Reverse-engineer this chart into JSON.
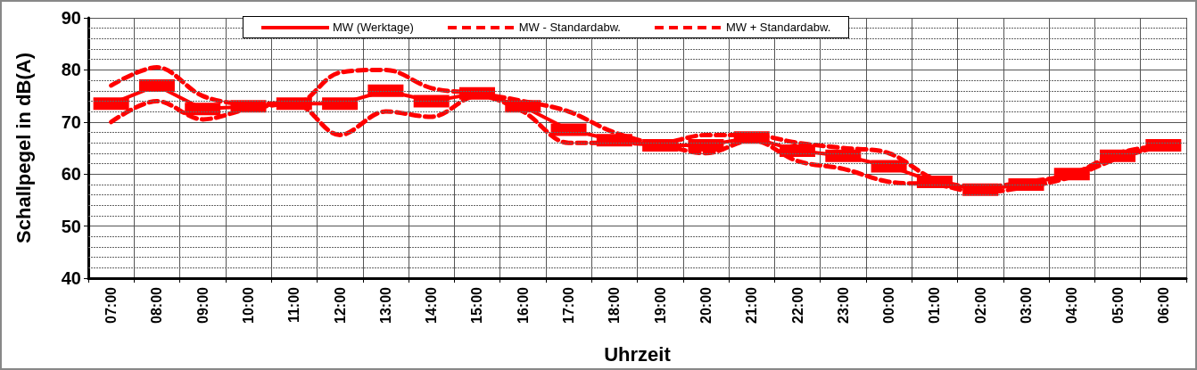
{
  "chart_data": {
    "type": "line",
    "xlabel": "Uhrzeit",
    "ylabel": "Schallpegel in dB(A)",
    "categories": [
      "07:00",
      "08:00",
      "09:00",
      "10:00",
      "11:00",
      "12:00",
      "13:00",
      "14:00",
      "15:00",
      "16:00",
      "17:00",
      "18:00",
      "19:00",
      "20:00",
      "21:00",
      "22:00",
      "23:00",
      "00:00",
      "01:00",
      "02:00",
      "03:00",
      "04:00",
      "05:00",
      "06:00"
    ],
    "series": [
      {
        "name": "MW (Werktage)",
        "color": "#ff0000",
        "marker": "square",
        "line_style": "solid",
        "values": [
          73.5,
          77,
          72.5,
          73,
          73.5,
          73.5,
          76,
          74,
          75.5,
          73,
          68.5,
          66.5,
          65.5,
          65.5,
          67,
          64.5,
          63.5,
          61.5,
          58.5,
          57,
          58,
          60,
          63.5,
          65.5
        ]
      },
      {
        "name": "MW - Standardabw.",
        "color": "#ff0000",
        "marker": "none",
        "line_style": "dashed",
        "values": [
          70,
          74,
          70.5,
          72.5,
          73.5,
          67.5,
          72,
          71,
          75,
          72,
          66,
          66,
          65.5,
          64,
          66.5,
          62.5,
          61,
          58.5,
          58,
          56.5,
          57.5,
          59.5,
          63,
          65.5
        ]
      },
      {
        "name": "MW + Standardabw.",
        "color": "#ff0000",
        "marker": "none",
        "line_style": "dashed",
        "values": [
          77,
          80.5,
          75,
          73.5,
          73.5,
          79.5,
          80,
          76.5,
          75.5,
          74,
          72,
          68,
          66,
          67.5,
          67.5,
          66,
          65,
          64,
          59,
          57.5,
          58.5,
          60,
          64,
          65.5
        ]
      }
    ],
    "ylim": [
      40,
      90
    ],
    "yticks": [
      40,
      {
        "value": 42,
        "label": null
      },
      {
        "value": 44,
        "label": null
      },
      {
        "value": 46,
        "label": null
      },
      {
        "value": 48,
        "label": null
      },
      50,
      {
        "value": 52,
        "label": null
      },
      {
        "value": 54,
        "label": null
      },
      {
        "value": 56,
        "label": null
      },
      {
        "value": 58,
        "label": null
      },
      60,
      {
        "value": 62,
        "label": null
      },
      {
        "value": 64,
        "label": null
      },
      {
        "value": 66,
        "label": null
      },
      {
        "value": 68,
        "label": null
      },
      70,
      {
        "value": 72,
        "label": null
      },
      {
        "value": 74,
        "label": null
      },
      {
        "value": 76,
        "label": null
      },
      {
        "value": 78,
        "label": null
      },
      80,
      {
        "value": 82,
        "label": null
      },
      {
        "value": 84,
        "label": null
      },
      {
        "value": 86,
        "label": null
      },
      {
        "value": 88,
        "label": null
      },
      90
    ],
    "grid": true,
    "legend": "top"
  }
}
